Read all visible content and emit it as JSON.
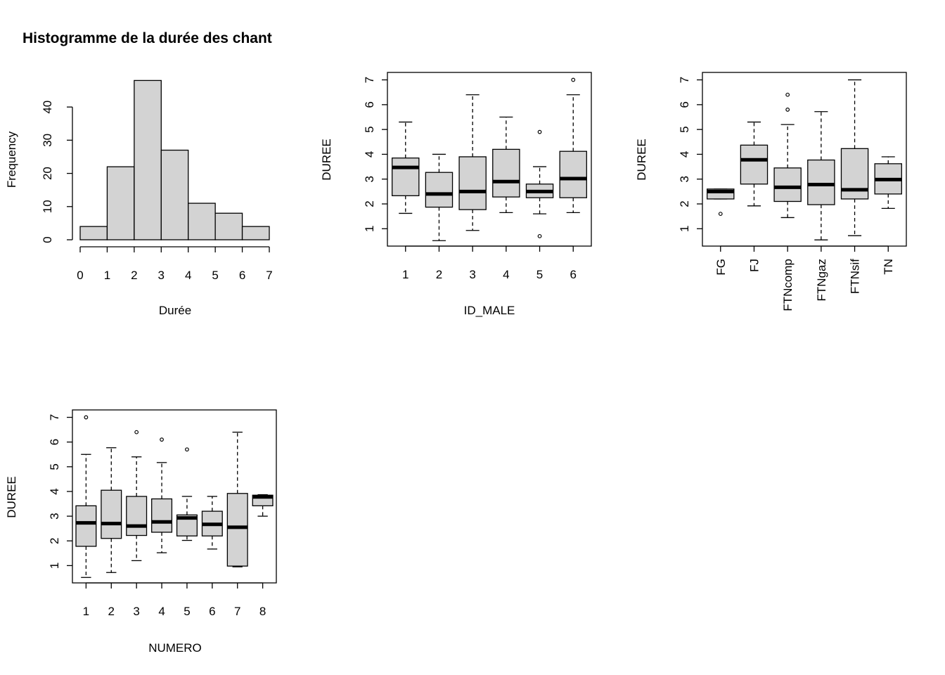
{
  "chart_data": [
    {
      "type": "histogram",
      "title": "Histogramme de la durée des chant",
      "xlabel": "Durée",
      "ylabel": "Frequency",
      "bins": [
        [
          0,
          1
        ],
        [
          1,
          2
        ],
        [
          2,
          3
        ],
        [
          3,
          4
        ],
        [
          4,
          5
        ],
        [
          5,
          6
        ],
        [
          6,
          7
        ]
      ],
      "values": [
        4,
        22,
        48,
        27,
        11,
        8,
        4
      ],
      "xticks": [
        "0",
        "1",
        "2",
        "3",
        "4",
        "5",
        "6",
        "7"
      ],
      "yticks": [
        "0",
        "10",
        "20",
        "30",
        "40"
      ],
      "xlim": [
        0,
        7
      ],
      "ylim": [
        0,
        48
      ],
      "colors": {
        "fill": "#d3d3d3",
        "stroke": "#000000"
      }
    },
    {
      "type": "boxplot",
      "xlabel": "ID_MALE",
      "ylabel": "DUREE",
      "categories": [
        "1",
        "2",
        "3",
        "4",
        "5",
        "6"
      ],
      "boxes": [
        {
          "min": 1.62,
          "q1": 2.33,
          "median": 3.47,
          "q3": 3.85,
          "max": 5.3,
          "outliers": []
        },
        {
          "min": 0.52,
          "q1": 1.87,
          "median": 2.4,
          "q3": 3.27,
          "max": 4.0,
          "outliers": []
        },
        {
          "min": 0.93,
          "q1": 1.77,
          "median": 2.5,
          "q3": 3.9,
          "max": 6.4,
          "outliers": []
        },
        {
          "min": 1.65,
          "q1": 2.28,
          "median": 2.9,
          "q3": 4.2,
          "max": 5.5,
          "outliers": []
        },
        {
          "min": 1.6,
          "q1": 2.25,
          "median": 2.5,
          "q3": 2.8,
          "max": 3.5,
          "outliers": [
            4.9,
            0.7
          ]
        },
        {
          "min": 1.65,
          "q1": 2.25,
          "median": 3.02,
          "q3": 4.12,
          "max": 6.4,
          "outliers": [
            7.0
          ]
        }
      ],
      "yticks": [
        "1",
        "2",
        "3",
        "4",
        "5",
        "6",
        "7"
      ],
      "ylim": [
        0.3,
        7.3
      ],
      "colors": {
        "fill": "#d3d3d3",
        "stroke": "#000000"
      }
    },
    {
      "type": "boxplot",
      "xlabel": "",
      "ylabel": "DUREE",
      "categories": [
        "FG",
        "FJ",
        "FTNcomp",
        "FTNgaz",
        "FTNsif",
        "TN"
      ],
      "boxes": [
        {
          "min": 2.2,
          "q1": 2.2,
          "median": 2.5,
          "q3": 2.6,
          "max": 2.6,
          "outliers": [
            1.6
          ]
        },
        {
          "min": 1.92,
          "q1": 2.8,
          "median": 3.78,
          "q3": 4.37,
          "max": 5.3,
          "outliers": []
        },
        {
          "min": 1.45,
          "q1": 2.1,
          "median": 2.67,
          "q3": 3.45,
          "max": 5.2,
          "outliers": [
            5.8,
            6.4
          ]
        },
        {
          "min": 0.55,
          "q1": 1.97,
          "median": 2.78,
          "q3": 3.77,
          "max": 5.72,
          "outliers": []
        },
        {
          "min": 0.72,
          "q1": 2.2,
          "median": 2.57,
          "q3": 4.23,
          "max": 7.0,
          "outliers": []
        },
        {
          "min": 1.82,
          "q1": 2.4,
          "median": 2.98,
          "q3": 3.62,
          "max": 3.9,
          "outliers": []
        }
      ],
      "yticks": [
        "1",
        "2",
        "3",
        "4",
        "5",
        "6",
        "7"
      ],
      "ylim": [
        0.3,
        7.3
      ],
      "colors": {
        "fill": "#d3d3d3",
        "stroke": "#000000"
      }
    },
    {
      "type": "boxplot",
      "xlabel": "NUMERO",
      "ylabel": "DUREE",
      "categories": [
        "1",
        "2",
        "3",
        "4",
        "5",
        "6",
        "7",
        "8"
      ],
      "boxes": [
        {
          "min": 0.52,
          "q1": 1.78,
          "median": 2.73,
          "q3": 3.42,
          "max": 5.5,
          "outliers": [
            7.0
          ]
        },
        {
          "min": 0.72,
          "q1": 2.1,
          "median": 2.7,
          "q3": 4.05,
          "max": 5.77,
          "outliers": []
        },
        {
          "min": 1.2,
          "q1": 2.22,
          "median": 2.6,
          "q3": 3.8,
          "max": 5.4,
          "outliers": [
            6.4
          ]
        },
        {
          "min": 1.52,
          "q1": 2.35,
          "median": 2.77,
          "q3": 3.7,
          "max": 5.17,
          "outliers": [
            6.1
          ]
        },
        {
          "min": 2.02,
          "q1": 2.2,
          "median": 2.93,
          "q3": 3.05,
          "max": 3.8,
          "outliers": [
            5.7
          ]
        },
        {
          "min": 1.67,
          "q1": 2.2,
          "median": 2.67,
          "q3": 3.2,
          "max": 3.8,
          "outliers": []
        },
        {
          "min": 0.95,
          "q1": 0.98,
          "median": 2.55,
          "q3": 3.92,
          "max": 6.4,
          "outliers": []
        },
        {
          "min": 3.0,
          "q1": 3.42,
          "median": 3.78,
          "q3": 3.85,
          "max": 3.87,
          "outliers": []
        }
      ],
      "yticks": [
        "1",
        "2",
        "3",
        "4",
        "5",
        "6",
        "7"
      ],
      "ylim": [
        0.3,
        7.3
      ],
      "colors": {
        "fill": "#d3d3d3",
        "stroke": "#000000"
      }
    }
  ]
}
